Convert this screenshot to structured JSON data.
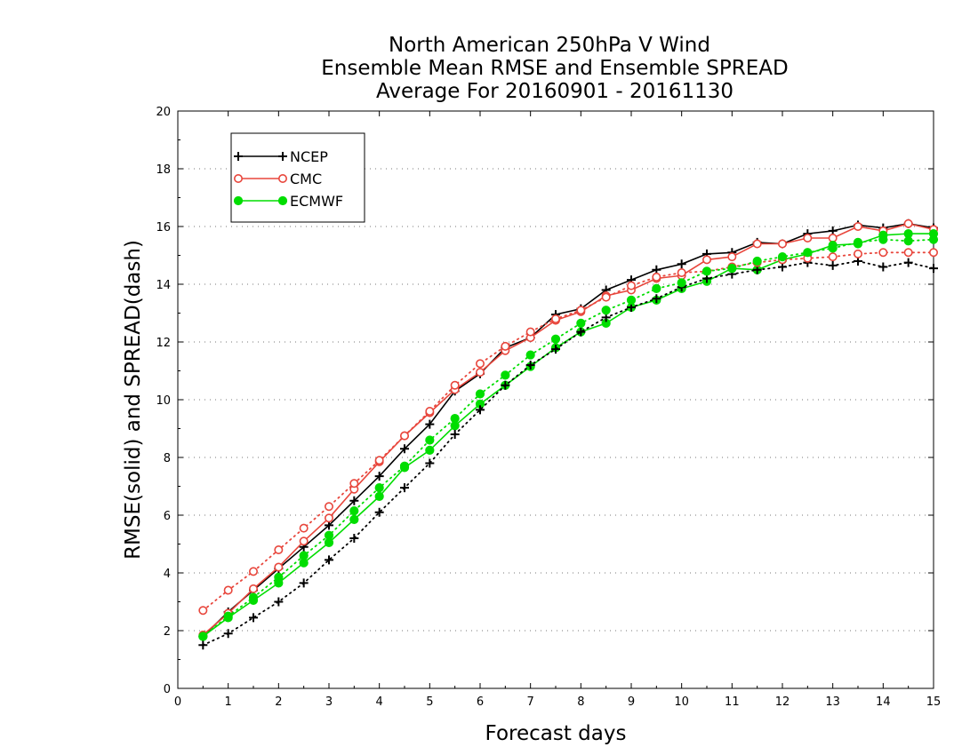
{
  "chart_data": {
    "type": "line",
    "title": [
      "North American 250hPa V Wind",
      "Ensemble Mean RMSE and Ensemble SPREAD",
      "Average For 20160901 - 20161130"
    ],
    "xlabel": "Forecast days",
    "ylabel": "RMSE(solid) and SPREAD(dash)",
    "xlim": [
      0,
      15
    ],
    "ylim": [
      0,
      20
    ],
    "xticks": [
      "0",
      "1",
      "2",
      "3",
      "4",
      "5",
      "6",
      "7",
      "8",
      "9",
      "10",
      "11",
      "12",
      "13",
      "14",
      "15"
    ],
    "yticks": [
      "0",
      "2",
      "4",
      "6",
      "8",
      "10",
      "12",
      "14",
      "16",
      "18",
      "20"
    ],
    "grid": "horizontal-dotted",
    "legend_position": "top-left",
    "x": [
      0.5,
      1,
      1.5,
      2,
      2.5,
      3,
      3.5,
      4,
      4.5,
      5,
      5.5,
      6,
      6.5,
      7,
      7.5,
      8,
      8.5,
      9,
      9.5,
      10,
      10.5,
      11,
      11.5,
      12,
      12.5,
      13,
      13.5,
      14,
      14.5,
      15
    ],
    "series": [
      {
        "name": "NCEP",
        "color": "#000000",
        "marker": "plus",
        "style": "solid",
        "values": [
          1.8,
          2.65,
          3.4,
          4.15,
          4.9,
          5.65,
          6.5,
          7.35,
          8.3,
          9.15,
          10.3,
          10.9,
          11.8,
          12.15,
          12.95,
          13.15,
          13.8,
          14.15,
          14.5,
          14.7,
          15.05,
          15.1,
          15.45,
          15.4,
          15.75,
          15.85,
          16.05,
          15.95,
          16.1,
          15.95
        ]
      },
      {
        "name": "CMC",
        "color": "#e8463c",
        "marker": "circle-open",
        "style": "solid",
        "values": [
          1.85,
          2.6,
          3.45,
          4.2,
          5.1,
          5.9,
          6.9,
          7.85,
          8.75,
          9.55,
          10.35,
          10.95,
          11.7,
          12.15,
          12.75,
          13.05,
          13.6,
          13.8,
          14.2,
          14.3,
          14.85,
          14.95,
          15.4,
          15.4,
          15.6,
          15.6,
          16.0,
          15.85,
          16.1,
          15.9
        ]
      },
      {
        "name": "ECMWF",
        "color": "#00dd00",
        "marker": "circle-filled",
        "style": "solid",
        "values": [
          1.8,
          2.45,
          3.05,
          3.65,
          4.35,
          5.05,
          5.85,
          6.65,
          7.65,
          8.25,
          9.1,
          9.85,
          10.5,
          11.15,
          11.8,
          12.35,
          12.65,
          13.2,
          13.45,
          13.85,
          14.1,
          14.55,
          14.5,
          14.85,
          15.05,
          15.35,
          15.4,
          15.7,
          15.75,
          15.75
        ]
      },
      {
        "name": "NCEP",
        "color": "#000000",
        "marker": "plus",
        "style": "dotted",
        "values": [
          1.5,
          1.9,
          2.45,
          3.0,
          3.65,
          4.45,
          5.2,
          6.1,
          6.95,
          7.8,
          8.8,
          9.65,
          10.5,
          11.2,
          11.75,
          12.35,
          12.85,
          13.2,
          13.5,
          13.9,
          14.2,
          14.35,
          14.5,
          14.6,
          14.75,
          14.65,
          14.8,
          14.6,
          14.75,
          14.55
        ]
      },
      {
        "name": "CMC",
        "color": "#e8463c",
        "marker": "circle-open",
        "style": "dotted",
        "values": [
          2.7,
          3.4,
          4.05,
          4.8,
          5.55,
          6.3,
          7.1,
          7.9,
          8.75,
          9.6,
          10.5,
          11.25,
          11.85,
          12.35,
          12.8,
          13.1,
          13.55,
          13.95,
          14.25,
          14.4,
          14.45,
          14.6,
          14.75,
          14.85,
          14.9,
          14.95,
          15.05,
          15.1,
          15.1,
          15.1
        ]
      },
      {
        "name": "ECMWF",
        "color": "#00dd00",
        "marker": "circle-filled",
        "style": "dotted",
        "values": [
          1.8,
          2.5,
          3.15,
          3.85,
          4.6,
          5.3,
          6.15,
          6.95,
          7.7,
          8.6,
          9.35,
          10.2,
          10.85,
          11.55,
          12.1,
          12.65,
          13.1,
          13.45,
          13.85,
          14.05,
          14.45,
          14.55,
          14.8,
          14.95,
          15.1,
          15.25,
          15.45,
          15.55,
          15.5,
          15.55
        ]
      }
    ]
  }
}
